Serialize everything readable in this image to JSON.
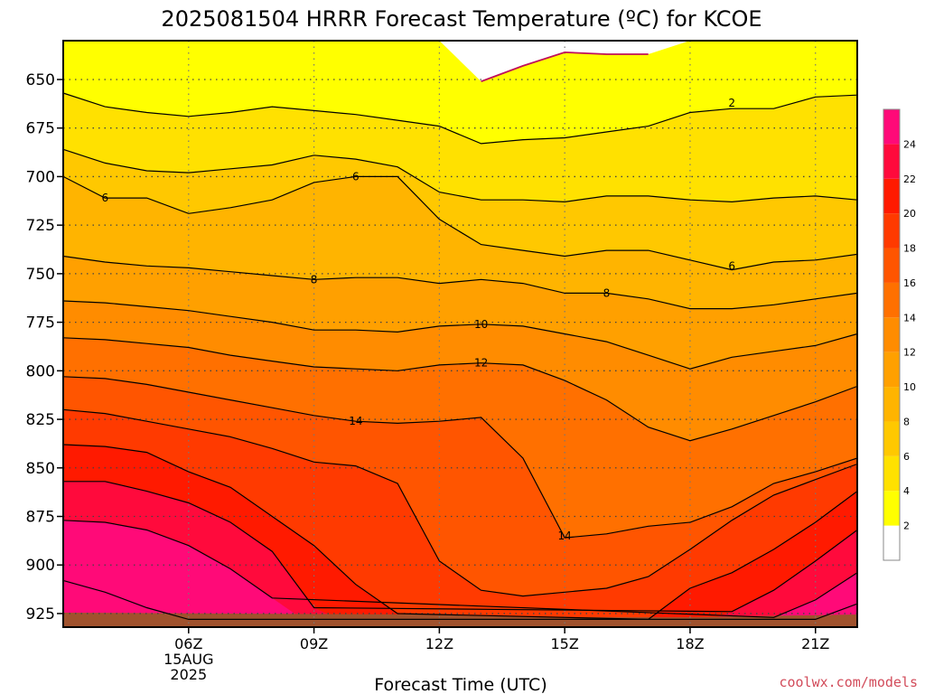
{
  "chart_data": {
    "type": "heatmap",
    "title": "2025081504 HRRR Forecast Temperature (ºC) for KCOE",
    "xlabel": "Forecast Time (UTC)",
    "x_hours": [
      3,
      4,
      5,
      6,
      7,
      8,
      9,
      10,
      11,
      12,
      13,
      14,
      15,
      16,
      17,
      18,
      19,
      20,
      21,
      22
    ],
    "x_ticks": [
      {
        "hour": 6,
        "label": "06Z",
        "sub1": "15AUG",
        "sub2": "2025"
      },
      {
        "hour": 9,
        "label": "09Z"
      },
      {
        "hour": 12,
        "label": "12Z"
      },
      {
        "hour": 15,
        "label": "15Z"
      },
      {
        "hour": 18,
        "label": "18Z"
      },
      {
        "hour": 21,
        "label": "21Z"
      }
    ],
    "y_axis": {
      "unit": "hPa",
      "range": [
        932,
        630
      ],
      "ticks": [
        650,
        675,
        700,
        725,
        750,
        775,
        800,
        825,
        850,
        875,
        900,
        925
      ]
    },
    "grid": true,
    "levels": [
      2,
      4,
      6,
      8,
      10,
      12,
      14,
      16,
      18,
      20,
      22,
      24
    ],
    "colorbar_ticks": [
      "2",
      "4",
      "6",
      "8",
      "10",
      "12",
      "14",
      "16",
      "18",
      "20",
      "22",
      "24"
    ],
    "colors": [
      "#ffffff",
      "#ffff00",
      "#ffe100",
      "#ffc800",
      "#ffb400",
      "#ffa000",
      "#ff8c00",
      "#ff7000",
      "#ff5500",
      "#ff3a00",
      "#ff1a00",
      "#ff0a3c",
      "#ff0a78"
    ],
    "ground_color": "#a0522d",
    "isotherms": [
      {
        "value": 0,
        "color": "#c0105a",
        "pressure": [
          630,
          630,
          630,
          630,
          630,
          630,
          630,
          630,
          630,
          630,
          651,
          643,
          636,
          637,
          637,
          630,
          630,
          630,
          630,
          630
        ]
      },
      {
        "value": 2,
        "pressure": [
          657,
          664,
          667,
          669,
          667,
          664,
          666,
          668,
          671,
          674,
          683,
          681,
          680,
          677,
          674,
          667,
          665,
          665,
          659,
          658
        ]
      },
      {
        "value": 4,
        "pressure": [
          686,
          693,
          697,
          698,
          696,
          694,
          689,
          691,
          695,
          708,
          712,
          712,
          713,
          710,
          710,
          712,
          713,
          711,
          710,
          712
        ]
      },
      {
        "value": 6,
        "pressure": [
          700,
          711,
          711,
          719,
          716,
          712,
          703,
          700,
          700,
          722,
          735,
          738,
          741,
          738,
          738,
          743,
          748,
          744,
          743,
          740
        ]
      },
      {
        "value": 8,
        "pressure": [
          741,
          744,
          746,
          747,
          749,
          751,
          753,
          752,
          752,
          755,
          753,
          755,
          760,
          760,
          763,
          768,
          768,
          766,
          763,
          760
        ]
      },
      {
        "value": 10,
        "pressure": [
          764,
          765,
          767,
          769,
          772,
          775,
          779,
          779,
          780,
          777,
          776,
          777,
          781,
          785,
          792,
          799,
          793,
          790,
          787,
          781
        ]
      },
      {
        "value": 12,
        "pressure": [
          783,
          784,
          786,
          788,
          792,
          795,
          798,
          799,
          800,
          797,
          796,
          797,
          805,
          815,
          829,
          836,
          830,
          823,
          816,
          808
        ]
      },
      {
        "value": 14,
        "pressure": [
          803,
          804,
          807,
          811,
          815,
          819,
          823,
          826,
          827,
          826,
          824,
          845,
          886,
          884,
          880,
          878,
          870,
          858,
          852,
          845
        ]
      },
      {
        "value": 16,
        "pressure": [
          820,
          822,
          826,
          830,
          834,
          840,
          847,
          849,
          858,
          898,
          913,
          916,
          914,
          912,
          906,
          892,
          877,
          864,
          856,
          848
        ]
      },
      {
        "value": 18,
        "pressure": [
          838,
          839,
          842,
          852,
          860,
          875,
          890,
          910,
          925,
          932,
          932,
          932,
          932,
          932,
          928,
          912,
          904,
          892,
          878,
          862
        ]
      },
      {
        "value": 20,
        "pressure": [
          857,
          857,
          862,
          868,
          878,
          893,
          922,
          932,
          932,
          932,
          932,
          932,
          932,
          932,
          932,
          932,
          924,
          913,
          898,
          882
        ]
      },
      {
        "value": 22,
        "pressure": [
          877,
          878,
          882,
          890,
          902,
          917,
          932,
          932,
          932,
          932,
          932,
          932,
          932,
          932,
          932,
          932,
          932,
          927,
          918,
          904
        ]
      },
      {
        "value": 24,
        "pressure": [
          908,
          914,
          922,
          928,
          932,
          932,
          932,
          932,
          932,
          932,
          932,
          932,
          932,
          932,
          932,
          932,
          932,
          932,
          928,
          920
        ]
      }
    ],
    "contour_labels": [
      {
        "text": "2",
        "hour": 19,
        "pressure": 662
      },
      {
        "text": "6",
        "hour": 4,
        "pressure": 711
      },
      {
        "text": "6",
        "hour": 10,
        "pressure": 700
      },
      {
        "text": "6",
        "hour": 19,
        "pressure": 746
      },
      {
        "text": "8",
        "hour": 9,
        "pressure": 753
      },
      {
        "text": "8",
        "hour": 16,
        "pressure": 760
      },
      {
        "text": "10",
        "hour": 13,
        "pressure": 776
      },
      {
        "text": "12",
        "hour": 13,
        "pressure": 796
      },
      {
        "text": "14",
        "hour": 10,
        "pressure": 826
      },
      {
        "text": "14",
        "hour": 15,
        "pressure": 885
      }
    ]
  },
  "credit": "coolwx.com/models",
  "credit_color": "#d24b5a"
}
